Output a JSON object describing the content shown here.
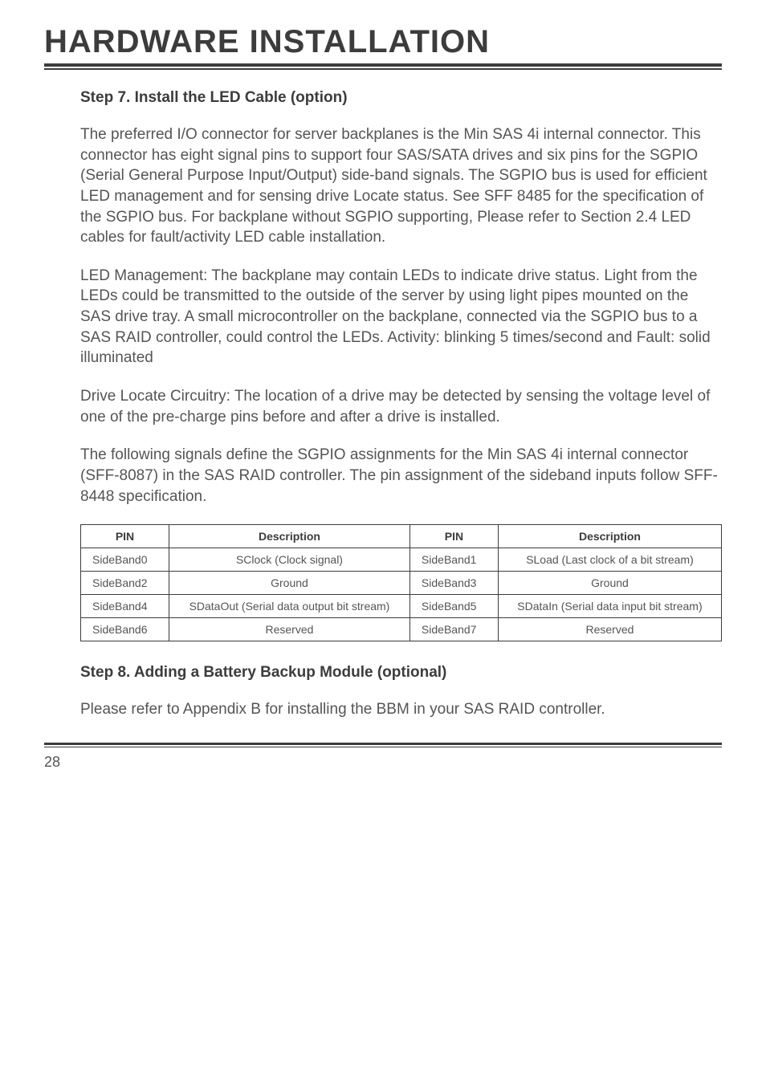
{
  "title": "HARDWARE INSTALLATION",
  "step7": {
    "heading": "Step 7. Install the LED Cable (option)",
    "p1": "The preferred I/O connector for server backplanes is the Min SAS 4i internal connector. This connector has eight signal pins to support four SAS/SATA drives and six pins for the SGPIO (Serial General Purpose Input/Output) side-band signals. The SGPIO bus is used for efficient LED management and for sensing drive Locate status. See SFF 8485 for the specification of the SGPIO bus. For backplane without SGPIO supporting, Please refer to Section 2.4 LED cables for fault/activity LED cable installation.",
    "p2": "LED Management: The backplane may contain LEDs to indicate drive status. Light from the LEDs could be transmitted to the outside of the server by using light pipes mounted on the SAS drive tray. A small microcontroller on the backplane, connected via the SGPIO bus to a SAS RAID controller, could control the LEDs. Activity: blinking 5 times/second and Fault: solid illuminated",
    "p3": "Drive Locate Circuitry: The location of a drive may be detected by sensing the voltage level of one of the pre-charge pins before and after a drive is installed.",
    "p4": "The following signals define the SGPIO assignments for the Min SAS 4i internal connector (SFF-8087) in the SAS RAID controller. The pin assignment of the sideband inputs follow SFF-8448 specification."
  },
  "table": {
    "headers": [
      "PIN",
      "Description",
      "PIN",
      "Description"
    ],
    "rows": [
      [
        "SideBand0",
        "SClock (Clock signal)",
        "SideBand1",
        "SLoad (Last clock of a bit stream)"
      ],
      [
        "SideBand2",
        "Ground",
        "SideBand3",
        "Ground"
      ],
      [
        "SideBand4",
        "SDataOut (Serial data output bit stream)",
        "SideBand5",
        "SDataIn (Serial data input bit stream)"
      ],
      [
        "SideBand6",
        "Reserved",
        "SideBand7",
        "Reserved"
      ]
    ]
  },
  "step8": {
    "heading": "Step 8. Adding a Battery Backup Module (optional)",
    "p1": "Please refer to Appendix B for installing the BBM in your SAS RAID controller."
  },
  "page_number": "28"
}
